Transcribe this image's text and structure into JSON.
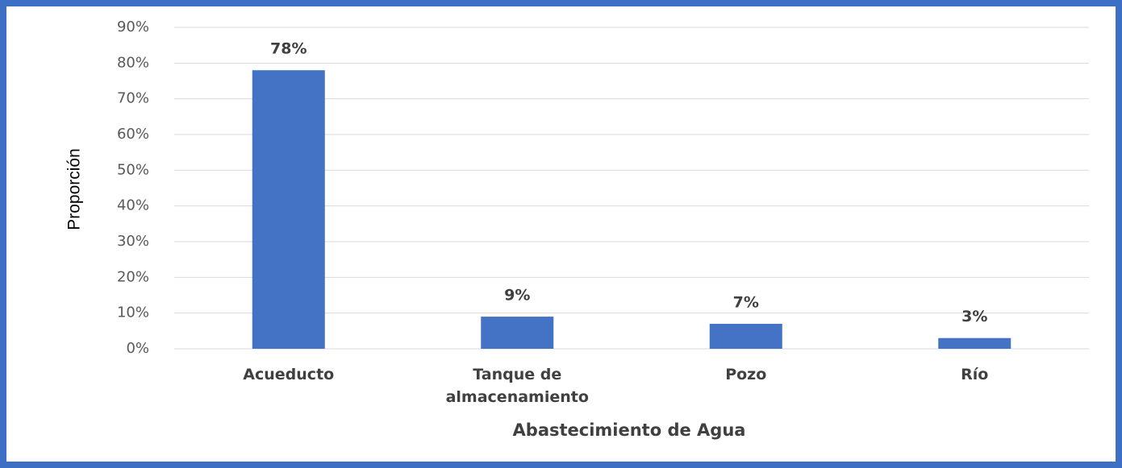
{
  "chart_data": {
    "type": "bar",
    "categories": [
      "Acueducto",
      "Tanque de almacenamiento",
      "Pozo",
      "Río"
    ],
    "values": [
      78,
      9,
      7,
      3
    ],
    "value_labels": [
      "78%",
      "9%",
      "7%",
      "3%"
    ],
    "color": "#4472c4",
    "xlabel": "Abastecimiento de Agua",
    "ylabel": "Proporción",
    "ylim": [
      0,
      90
    ],
    "yticks": [
      {
        "value": 0,
        "label": "0%"
      },
      {
        "value": 10,
        "label": "10%"
      },
      {
        "value": 20,
        "label": "20%"
      },
      {
        "value": 30,
        "label": "30%"
      },
      {
        "value": 40,
        "label": "40%"
      },
      {
        "value": 50,
        "label": "50%"
      },
      {
        "value": 60,
        "label": "60%"
      },
      {
        "value": 70,
        "label": "70%"
      },
      {
        "value": 80,
        "label": "80%"
      },
      {
        "value": 90,
        "label": "90%"
      }
    ],
    "grid": true
  }
}
